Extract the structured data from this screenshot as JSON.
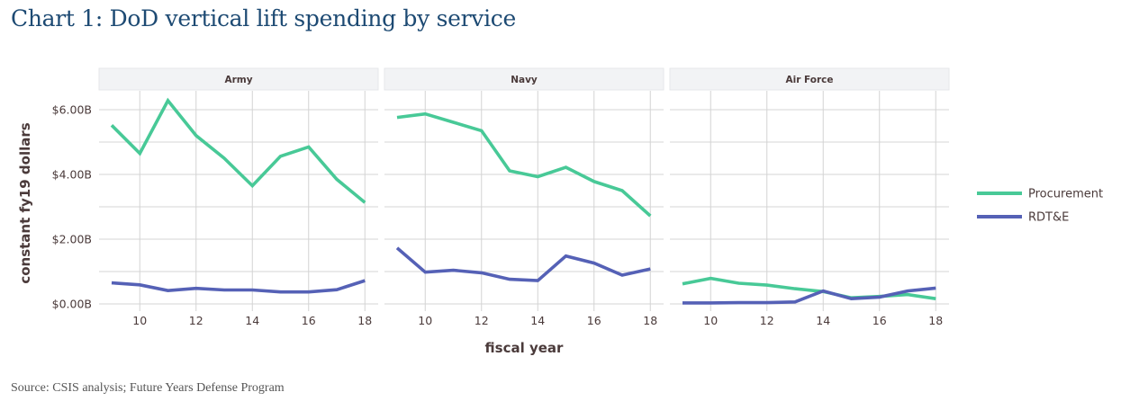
{
  "page": {
    "title": "Chart 1: DoD vertical lift spending by service",
    "source": "Source: CSIS analysis; Future Years Defense Program"
  },
  "chart_data": {
    "type": "line",
    "title": "Chart 1: DoD vertical lift spending by service",
    "xlabel": "fiscal year",
    "ylabel": "constant fy19 dollars",
    "x": [
      9,
      10,
      11,
      12,
      13,
      14,
      15,
      16,
      17,
      18
    ],
    "x_ticks": [
      10,
      12,
      14,
      16,
      18
    ],
    "x_tick_labels": [
      "10",
      "12",
      "14",
      "16",
      "18"
    ],
    "xlim": [
      9,
      18
    ],
    "y_ticks": [
      0,
      2,
      4,
      6
    ],
    "y_tick_labels": [
      "$0.00B",
      "$2.00B",
      "$4.00B",
      "$6.00B"
    ],
    "ylim": [
      0,
      6.6
    ],
    "y_units": "billions USD",
    "grid": true,
    "legend_position": "right",
    "legend": [
      {
        "name": "Procurement",
        "color": "#48c997"
      },
      {
        "name": "RDT&E",
        "color": "#5561b6"
      }
    ],
    "facets": [
      {
        "panel": "Army",
        "series": [
          {
            "name": "Procurement",
            "values": [
              5.52,
              4.65,
              6.28,
              5.2,
              4.5,
              3.65,
              4.56,
              4.85,
              3.85,
              3.13
            ]
          },
          {
            "name": "RDT&E",
            "values": [
              0.65,
              0.59,
              0.41,
              0.48,
              0.43,
              0.43,
              0.37,
              0.37,
              0.44,
              0.72
            ]
          }
        ]
      },
      {
        "panel": "Navy",
        "series": [
          {
            "name": "Procurement",
            "values": [
              5.76,
              5.87,
              5.61,
              5.35,
              4.11,
              3.93,
              4.22,
              3.78,
              3.5,
              2.72
            ]
          },
          {
            "name": "RDT&E",
            "values": [
              1.73,
              0.98,
              1.04,
              0.96,
              0.76,
              0.72,
              1.48,
              1.26,
              0.89,
              1.08
            ]
          }
        ]
      },
      {
        "panel": "Air Force",
        "series": [
          {
            "name": "Procurement",
            "values": [
              0.62,
              0.79,
              0.64,
              0.58,
              0.47,
              0.38,
              0.19,
              0.23,
              0.29,
              0.16
            ]
          },
          {
            "name": "RDT&E",
            "values": [
              0.03,
              0.03,
              0.04,
              0.04,
              0.06,
              0.4,
              0.16,
              0.21,
              0.4,
              0.49
            ]
          }
        ]
      }
    ]
  }
}
